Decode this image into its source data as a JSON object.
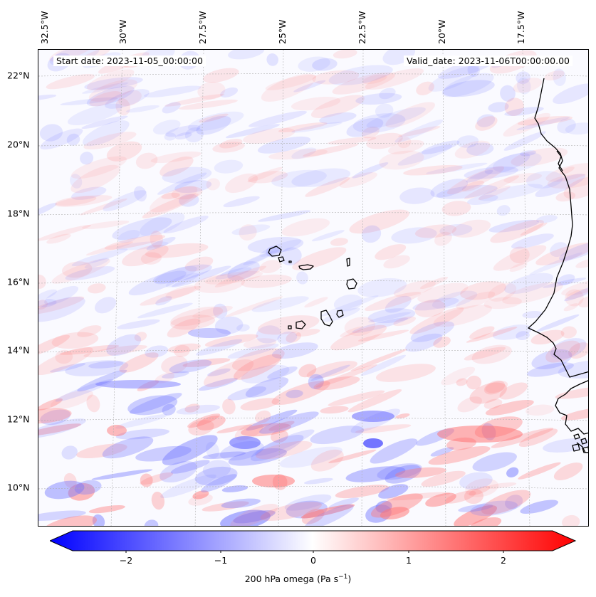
{
  "annotations": {
    "start_date": "Start date: 2023-11-05_00:00:00",
    "valid_date": "Valid_date: 2023-11-06T00:00:00.00"
  },
  "axes": {
    "lat_ticks": [
      "22°N",
      "20°N",
      "18°N",
      "16°N",
      "14°N",
      "12°N",
      "10°N"
    ],
    "lon_ticks": [
      "32.5°W",
      "30°W",
      "27.5°W",
      "25°W",
      "22.5°W",
      "20°W",
      "17.5°W"
    ]
  },
  "colorbar": {
    "ticks": [
      "−2",
      "−1",
      "0",
      "1",
      "2"
    ],
    "label_prefix": "200 hPa omega (Pa s",
    "label_exp": "−1",
    "label_suffix": ")",
    "min": -2.6,
    "max": 2.6,
    "colors": {
      "low": "#0000ff",
      "mid": "#ffffff",
      "high": "#ff0000"
    }
  },
  "map": {
    "field": "200 hPa omega",
    "coastline_color": "#000000",
    "gridline_color": "#b0b0b0"
  }
}
